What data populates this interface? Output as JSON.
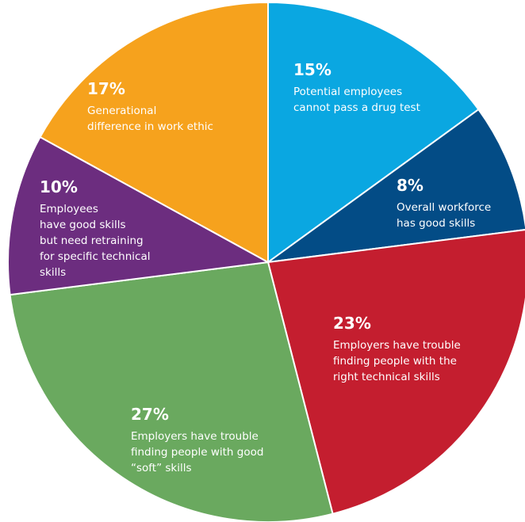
{
  "chart_data": {
    "type": "pie",
    "start_angle_deg": 0,
    "direction": "clockwise",
    "slices": [
      {
        "value": 15,
        "value_label": "15%",
        "label_lines": [
          "Potential employees",
          "cannot pass a drug test"
        ],
        "color": "#0aa7e1"
      },
      {
        "value": 8,
        "value_label": "8%",
        "label_lines": [
          "Overall workforce",
          "has good skills"
        ],
        "color": "#034c86"
      },
      {
        "value": 23,
        "value_label": "23%",
        "label_lines": [
          "Employers have trouble",
          "finding people with the",
          "right technical skills"
        ],
        "color": "#c41e2f"
      },
      {
        "value": 27,
        "value_label": "27%",
        "label_lines": [
          "Employers have trouble",
          "finding people with good",
          "“soft” skills"
        ],
        "color": "#6aa95f"
      },
      {
        "value": 10,
        "value_label": "10%",
        "label_lines": [
          "Employees",
          "have good skills",
          "but need retraining",
          "for specific technical",
          "skills"
        ],
        "color": "#6c2d7f"
      },
      {
        "value": 17,
        "value_label": "17%",
        "label_lines": [
          "Generational",
          "difference in work ethic"
        ],
        "color": "#f6a21d"
      }
    ],
    "legend": "none"
  }
}
